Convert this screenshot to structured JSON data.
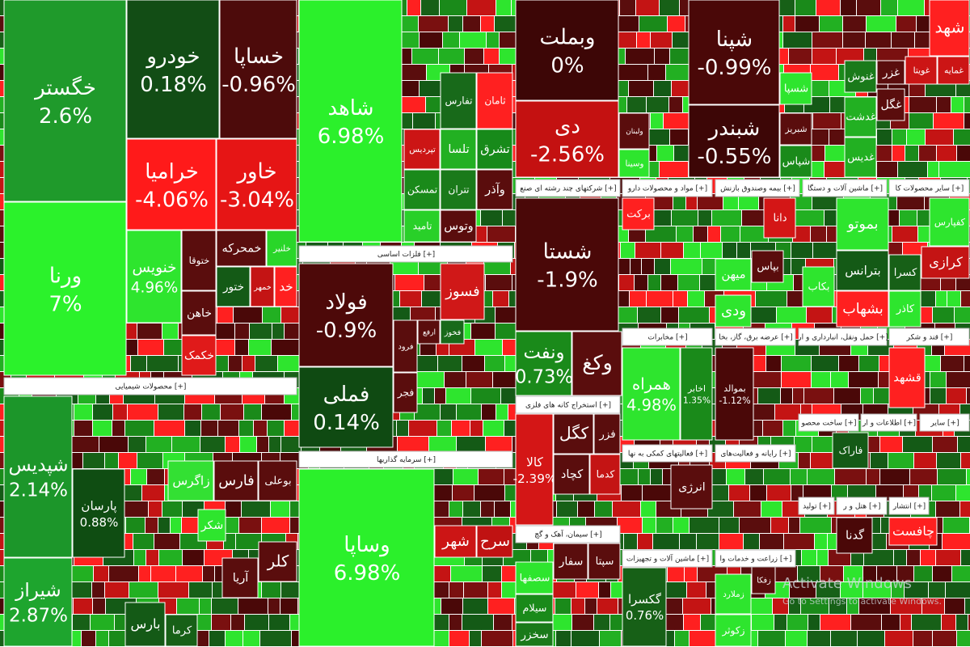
{
  "tiles": [
    {
      "label": "خگستر",
      "change": "2.6%"
    },
    {
      "label": "ورنا",
      "change": "7%"
    },
    {
      "label": "خودرو",
      "change": "0.18%"
    },
    {
      "label": "خساپا",
      "change": "-0.96%"
    },
    {
      "label": "خراميا",
      "change": "-4.06%"
    },
    {
      "label": "خاور",
      "change": "-3.04%"
    },
    {
      "label": "خنویس",
      "change": "4.96%"
    },
    {
      "label": "ختوقا"
    },
    {
      "label": "خمحرکه"
    },
    {
      "label": "خلنير"
    },
    {
      "label": "خاهن"
    },
    {
      "label": "خکمک"
    },
    {
      "label": "ختور"
    },
    {
      "label": "خمهر"
    },
    {
      "label": "خد"
    },
    {
      "label": "شپدیس",
      "change": "2.14%"
    },
    {
      "label": "شیراز",
      "change": "2.87%"
    },
    {
      "label": "پارسان",
      "change": "0.88%"
    },
    {
      "label": "زاگرس"
    },
    {
      "label": "فارس"
    },
    {
      "label": "بوعلی"
    },
    {
      "label": "شکر"
    },
    {
      "label": "کلر"
    },
    {
      "label": "آریا"
    },
    {
      "label": "بارس"
    },
    {
      "label": "کرما"
    },
    {
      "label": "شاهد",
      "change": "6.98%"
    },
    {
      "label": "تفارس"
    },
    {
      "label": "ثامان"
    },
    {
      "label": "تپرديس"
    },
    {
      "label": "تلسا"
    },
    {
      "label": "تشرق"
    },
    {
      "label": "تمسکن"
    },
    {
      "label": "تتران"
    },
    {
      "label": "وآذر"
    },
    {
      "label": "تامید"
    },
    {
      "label": "وتوس"
    },
    {
      "label": "فولاد",
      "change": "-0.9%"
    },
    {
      "label": "فملی",
      "change": "0.14%"
    },
    {
      "label": "فسوز"
    },
    {
      "label": "فرود"
    },
    {
      "label": "ارفع"
    },
    {
      "label": "فخوز"
    },
    {
      "label": "فجر"
    },
    {
      "label": "وساپا",
      "change": "6.98%"
    },
    {
      "label": "شهر"
    },
    {
      "label": "سرح"
    },
    {
      "label": "وبملت",
      "change": "0%"
    },
    {
      "label": "دی",
      "change": "-2.56%"
    },
    {
      "label": "ولبنان"
    },
    {
      "label": "وسینا"
    },
    {
      "label": "شپنا",
      "change": "-0.99%"
    },
    {
      "label": "شبندر",
      "change": "-0.55%"
    },
    {
      "label": "شسپا"
    },
    {
      "label": "شبریز"
    },
    {
      "label": "شپاس"
    },
    {
      "label": "غنوش"
    },
    {
      "label": "غزر"
    },
    {
      "label": "غویتا"
    },
    {
      "label": "غمایه"
    },
    {
      "label": "غدشت"
    },
    {
      "label": "غدیس"
    },
    {
      "label": "غگل"
    },
    {
      "label": "شهد"
    },
    {
      "label": "شستا",
      "change": "-1.9%"
    },
    {
      "label": "برکت"
    },
    {
      "label": "دانا"
    },
    {
      "label": "بپاس"
    },
    {
      "label": "میهن"
    },
    {
      "label": "ودی"
    },
    {
      "label": "بموتو"
    },
    {
      "label": "بترانس"
    },
    {
      "label": "بکاب"
    },
    {
      "label": "بشهاب"
    },
    {
      "label": "کفپارس"
    },
    {
      "label": "کسرا"
    },
    {
      "label": "کرازی"
    },
    {
      "label": "کاذر"
    },
    {
      "label": "ونفت",
      "change": "0.73%"
    },
    {
      "label": "وکغ"
    },
    {
      "label": "همراه",
      "change": "4.98%"
    },
    {
      "label": "اخابر",
      "change": "1.35%"
    },
    {
      "label": "بموالد",
      "change": "-1.12%"
    },
    {
      "label": "قشهد"
    },
    {
      "label": "کالا",
      "change": "-2.39%"
    },
    {
      "label": "کگل"
    },
    {
      "label": "کچاد"
    },
    {
      "label": "کدما"
    },
    {
      "label": "فزر"
    },
    {
      "label": "انرژی"
    },
    {
      "label": "فاراک"
    },
    {
      "label": "سفار"
    },
    {
      "label": "سپتا"
    },
    {
      "label": "سصفها"
    },
    {
      "label": "سیلام"
    },
    {
      "label": "سخزر"
    },
    {
      "label": "گکسرا",
      "change": "0.76%"
    },
    {
      "label": "زملارد"
    },
    {
      "label": "زکوثر"
    },
    {
      "label": "زفکا"
    },
    {
      "label": "گدنا"
    },
    {
      "label": "چافست"
    }
  ],
  "sectors": [
    {
      "label": "محصولات شیمیایی [+]"
    },
    {
      "label": "فلزات اساسی [+]"
    },
    {
      "label": "سرمایه گذاریها [+]"
    },
    {
      "label": "شرکتهای چند رشته ای صنع [+]"
    },
    {
      "label": "مواد و محصولات دارو [+]"
    },
    {
      "label": "بیمه وصندوق بازنش [+]"
    },
    {
      "label": "ماشین آلات و دستگا [+]"
    },
    {
      "label": "سایر محصولات کا [+]"
    },
    {
      "label": "مخابرات [+]"
    },
    {
      "label": "عرضه برق، گاز، بخا [+]"
    },
    {
      "label": "حمل ونقل، انبارداری و ار [+]"
    },
    {
      "label": "قند و شکر [+]"
    },
    {
      "label": "استخراج کانه های فلزی [+]"
    },
    {
      "label": "فعالیتهای کمکی به نها [+]"
    },
    {
      "label": "رایانه و فعالیت‌های [+]"
    },
    {
      "label": "ساخت محصو [+]"
    },
    {
      "label": "اطلاعات و ار [+]"
    },
    {
      "label": "ساير [+]"
    },
    {
      "label": "سیمان، آهک و گچ [+]"
    },
    {
      "label": "ماشین آلات و تجهیزات [+]"
    },
    {
      "label": "زراعت و خدمات وا [+]"
    },
    {
      "label": "تولید [+]"
    },
    {
      "label": "هتل و ر [+]"
    },
    {
      "label": "انتشار [+]"
    }
  ],
  "watermark": {
    "title": "Activate Windows",
    "subtitle": "Go to Settings to activate Windows."
  }
}
